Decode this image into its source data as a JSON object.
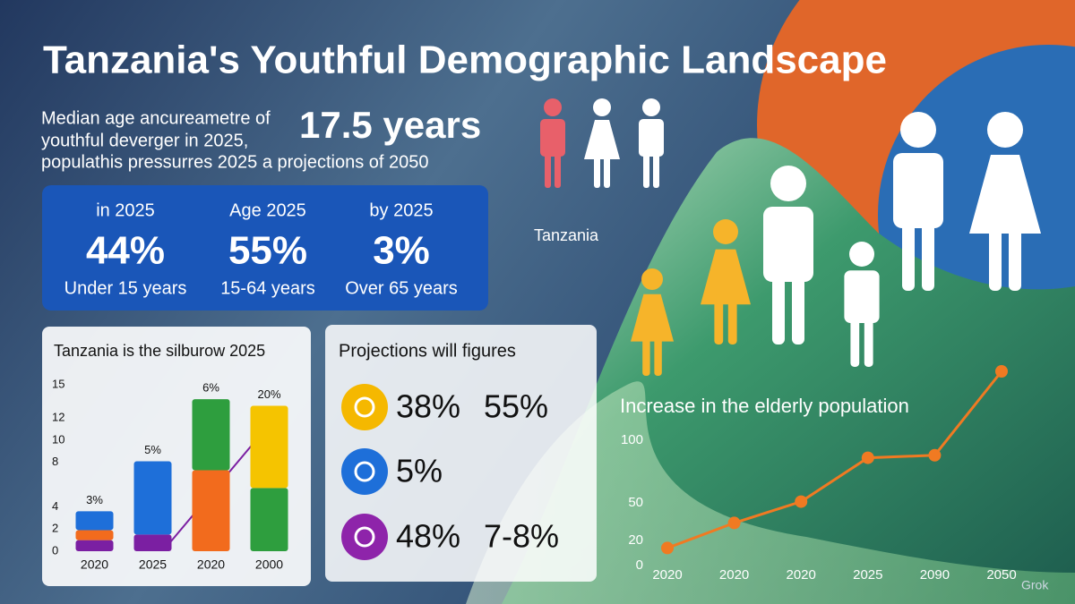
{
  "title": "Tanzania's Youthful Demographic Landscape",
  "intro": [
    "Median age ancureametre of",
    "youthful deverger in 2025,",
    "populathis pressurres 2025 a projections of 2050"
  ],
  "highlight": "17.5 years",
  "figure_label": "Tanzania",
  "stats": [
    {
      "heading": "in 2025",
      "value": "44%",
      "caption": "Under 15 years"
    },
    {
      "heading": "Age 2025",
      "value": "55%",
      "caption": "15-64 years"
    },
    {
      "heading": "by 2025",
      "value": "3%",
      "caption": "Over 65 years"
    }
  ],
  "projections": {
    "title": "Projections will figures",
    "rows": [
      [
        "38%",
        "55%"
      ],
      [
        "5%"
      ],
      [
        "48%",
        "7-8%"
      ]
    ]
  },
  "chart_data": [
    {
      "type": "bar",
      "title": "Tanzania is the silburow 2025",
      "categories": [
        "2020",
        "2025",
        "2020",
        "2000"
      ],
      "annotations": [
        "3%",
        "5%",
        "6%",
        "20%"
      ],
      "series": [
        {
          "color": "#7b1fa2",
          "values": [
            1,
            1.5,
            null,
            null
          ]
        },
        {
          "color": "#f26b1d",
          "values": [
            0.9,
            null,
            7.3,
            null
          ]
        },
        {
          "color": "#1e6fd9",
          "values": [
            1.7,
            6.6,
            null,
            null
          ]
        },
        {
          "color": "#2e9e3e",
          "values": [
            null,
            null,
            6.4,
            5.7
          ]
        },
        {
          "color": "#f5c400",
          "values": [
            null,
            null,
            null,
            7.4
          ]
        }
      ],
      "ylim": [
        0,
        15
      ],
      "yticks": [
        0,
        2,
        4,
        8,
        10,
        12,
        15
      ]
    },
    {
      "type": "line",
      "title": "Increase in the elderly population",
      "categories": [
        "2020",
        "2020",
        "2020",
        "2025",
        "2090",
        "2050"
      ],
      "values": [
        14,
        34,
        51,
        86,
        88,
        155
      ],
      "color": "#f07a22",
      "ylim": [
        0,
        160
      ],
      "yticks": [
        0,
        20,
        50,
        100
      ]
    }
  ],
  "watermark": "Grok"
}
